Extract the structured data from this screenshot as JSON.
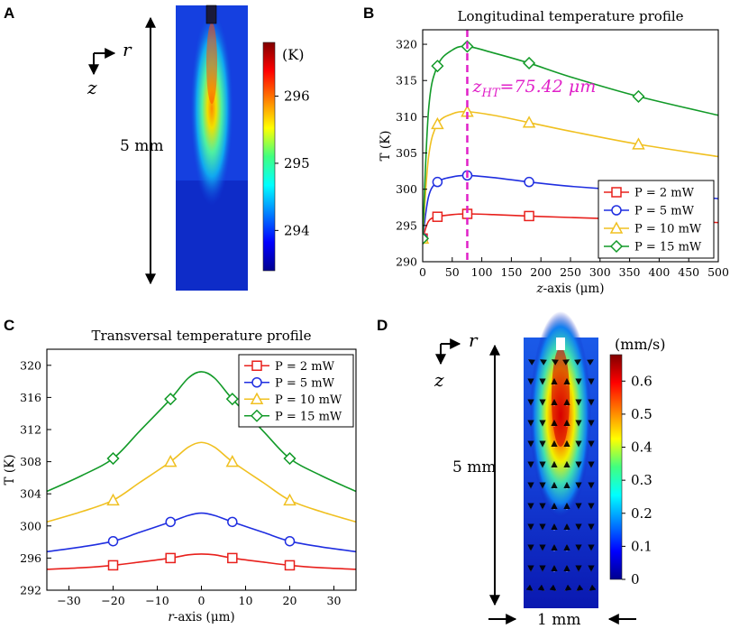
{
  "panels": {
    "A": {
      "letter": "A",
      "axis_r": "r",
      "axis_z": "z",
      "length_label": "5  mm",
      "colorbar": {
        "unit": "(K)",
        "ticks": [
          "296",
          "295",
          "294"
        ],
        "min": 293.4,
        "max": 296.8,
        "tick_values": [
          296,
          295,
          294
        ]
      }
    },
    "B": {
      "letter": "B"
    },
    "C": {
      "letter": "C"
    },
    "D": {
      "letter": "D",
      "axis_r": "r",
      "axis_z": "z",
      "length_label": "5  mm",
      "width_label": "1 mm",
      "colorbar": {
        "unit": "(mm/s)",
        "ticks": [
          "0.6",
          "0.5",
          "0.4",
          "0.3",
          "0.2",
          "0.1",
          "0"
        ],
        "min": 0,
        "max": 0.68,
        "tick_values": [
          0.6,
          0.5,
          0.4,
          0.3,
          0.2,
          0.1,
          0
        ]
      }
    }
  },
  "chart_data": [
    {
      "id": "B",
      "type": "line",
      "title": "Longitudinal temperature profile",
      "xlabel_prefix": "z",
      "xlabel_suffix": "-axis (μm)",
      "ylabel": "T (K)",
      "xlim": [
        0,
        500
      ],
      "ylim": [
        290,
        322
      ],
      "xticks": [
        0,
        50,
        100,
        150,
        200,
        250,
        300,
        350,
        400,
        450,
        500
      ],
      "yticks": [
        290,
        295,
        300,
        305,
        310,
        315,
        320
      ],
      "annotation": {
        "text_main": "z",
        "text_sub": "HT",
        "text_rest": "=75.42 μm",
        "x": 75.42,
        "color": "#e020c8"
      },
      "legend_loc": "lower-right",
      "series": [
        {
          "name": "P = 2 mW",
          "color": "#e8201c",
          "marker": "square",
          "x": [
            0,
            10,
            25,
            50,
            75.42,
            120,
            180,
            250,
            365,
            500
          ],
          "y": [
            293.2,
            295.6,
            296.2,
            296.5,
            296.6,
            296.5,
            296.3,
            296.1,
            295.8,
            295.4
          ],
          "marker_x": [
            0,
            25,
            75.42,
            180,
            365
          ]
        },
        {
          "name": "P = 5 mW",
          "color": "#1f2ee0",
          "marker": "circle",
          "x": [
            0,
            10,
            25,
            50,
            75.42,
            120,
            180,
            250,
            365,
            500
          ],
          "y": [
            293.2,
            299.0,
            301.0,
            301.7,
            301.9,
            301.6,
            301.0,
            300.4,
            299.7,
            298.7
          ],
          "marker_x": [
            0,
            25,
            75.42,
            180,
            365
          ]
        },
        {
          "name": "P = 10 mW",
          "color": "#f0c020",
          "marker": "triangle",
          "x": [
            0,
            10,
            25,
            50,
            75.42,
            120,
            180,
            250,
            365,
            500
          ],
          "y": [
            293.2,
            304.5,
            309.0,
            310.4,
            310.7,
            310.2,
            309.2,
            308.0,
            306.2,
            304.5
          ],
          "marker_x": [
            0,
            25,
            75.42,
            180,
            365
          ]
        },
        {
          "name": "P = 15 mW",
          "color": "#129a28",
          "marker": "diamond",
          "x": [
            0,
            10,
            25,
            50,
            75.42,
            120,
            180,
            250,
            365,
            500
          ],
          "y": [
            293.2,
            311.0,
            317.0,
            319.2,
            319.7,
            318.8,
            317.4,
            315.5,
            312.8,
            310.2
          ],
          "marker_x": [
            0,
            25,
            75.42,
            180,
            365
          ]
        }
      ]
    },
    {
      "id": "C",
      "type": "line",
      "title": "Transversal temperature profile",
      "xlabel_prefix": "r",
      "xlabel_suffix": "-axis (μm)",
      "ylabel": "T (K)",
      "xlim": [
        -35,
        35
      ],
      "ylim": [
        292,
        322
      ],
      "xticks": [
        -30,
        -20,
        -10,
        0,
        10,
        20,
        30
      ],
      "yticks": [
        292,
        296,
        300,
        304,
        308,
        312,
        316,
        320
      ],
      "legend_loc": "top-right",
      "series": [
        {
          "name": "P = 2 mW",
          "color": "#e8201c",
          "marker": "square",
          "x": [
            -35,
            -27,
            -20,
            -14,
            -7,
            -3,
            0,
            3,
            7,
            14,
            20,
            27,
            35
          ],
          "y": [
            294.6,
            294.8,
            295.1,
            295.5,
            296.0,
            296.4,
            296.5,
            296.4,
            296.0,
            295.5,
            295.1,
            294.8,
            294.6
          ],
          "marker_x": [
            -20,
            -7,
            7,
            20
          ]
        },
        {
          "name": "P = 5 mW",
          "color": "#1f2ee0",
          "marker": "circle",
          "x": [
            -35,
            -27,
            -20,
            -14,
            -7,
            -3,
            0,
            3,
            7,
            14,
            20,
            27,
            35
          ],
          "y": [
            296.8,
            297.4,
            298.1,
            299.2,
            300.5,
            301.3,
            301.6,
            301.3,
            300.5,
            299.2,
            298.1,
            297.4,
            296.8
          ],
          "marker_x": [
            -20,
            -7,
            7,
            20
          ]
        },
        {
          "name": "P = 10 mW",
          "color": "#f0c020",
          "marker": "triangle",
          "x": [
            -35,
            -27,
            -20,
            -14,
            -7,
            -3,
            0,
            3,
            7,
            14,
            20,
            27,
            35
          ],
          "y": [
            300.5,
            301.8,
            303.2,
            305.4,
            308.0,
            309.8,
            310.4,
            309.8,
            308.0,
            305.4,
            303.2,
            301.8,
            300.5
          ],
          "marker_x": [
            -20,
            -7,
            7,
            20
          ]
        },
        {
          "name": "P = 15 mW",
          "color": "#129a28",
          "marker": "diamond",
          "x": [
            -35,
            -27,
            -20,
            -14,
            -7,
            -3,
            0,
            3,
            7,
            14,
            20,
            27,
            35
          ],
          "y": [
            304.3,
            306.3,
            308.4,
            311.8,
            315.8,
            318.4,
            319.2,
            318.4,
            315.8,
            311.8,
            308.4,
            306.3,
            304.3
          ],
          "marker_x": [
            -20,
            -7,
            7,
            20
          ]
        }
      ]
    }
  ]
}
